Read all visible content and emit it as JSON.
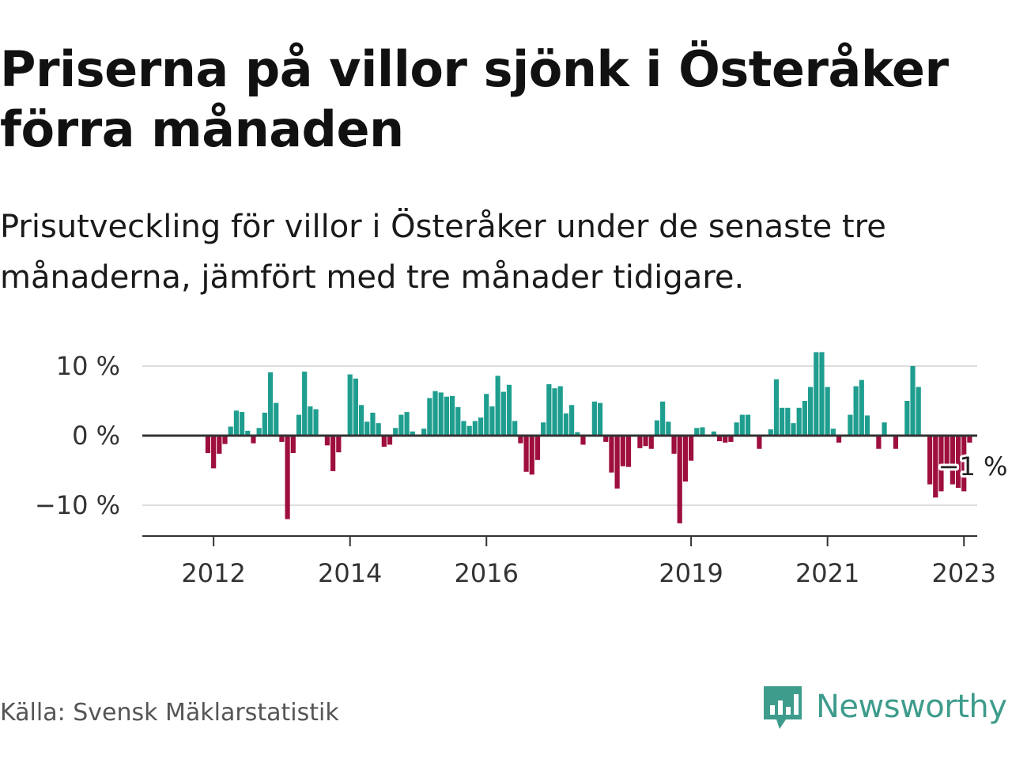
{
  "title": "Priserna på villor sjönk i Österåker förra månaden",
  "subtitle": "Prisutveckling för villor i Österåker under de senaste tre månaderna, jämfört med tre månader tidigare.",
  "source": "Källa: Svensk Mäklarstatistik",
  "brand": {
    "name": "Newsworthy",
    "logo_icon": "bar-chart-speech-bubble-icon",
    "color": "#3e9c8c"
  },
  "colors": {
    "positive": "#1f9e8f",
    "negative": "#9e0f3d",
    "gridline": "#dddddd",
    "zero_line": "#333333"
  },
  "chart_data": {
    "type": "bar",
    "title": "Priserna på villor sjönk i Österåker förra månaden",
    "subtitle": "Prisutveckling för villor i Österåker under de senaste tre månaderna, jämfört med tre månader tidigare.",
    "xlabel": "",
    "ylabel": "",
    "unit": "%",
    "x_range": [
      "2011-07",
      "2023-09"
    ],
    "ylim": [
      -14.5,
      13
    ],
    "grid": true,
    "legend": "none",
    "y_ticks": [
      {
        "value": 10,
        "label": "10 %"
      },
      {
        "value": 0,
        "label": "0 %"
      },
      {
        "value": -10,
        "label": "−10 %"
      }
    ],
    "x_ticks": [
      {
        "value": "2012-01",
        "label": "2012"
      },
      {
        "value": "2014-01",
        "label": "2014"
      },
      {
        "value": "2016-01",
        "label": "2016"
      },
      {
        "value": "2019-01",
        "label": "2019"
      },
      {
        "value": "2021-01",
        "label": "2021"
      },
      {
        "value": "2023-01",
        "label": "2023"
      }
    ],
    "end_label": {
      "date": "2023-02",
      "text": "−1 %"
    },
    "series": [
      {
        "points": [
          {
            "date": "2011-07",
            "value": 0
          },
          {
            "date": "2011-08",
            "value": 0
          },
          {
            "date": "2011-09",
            "value": 0
          },
          {
            "date": "2011-10",
            "value": 0
          },
          {
            "date": "2011-11",
            "value": 0
          },
          {
            "date": "2011-12",
            "value": -2.5
          },
          {
            "date": "2012-01",
            "value": -4.7
          },
          {
            "date": "2012-02",
            "value": -2.6
          },
          {
            "date": "2012-03",
            "value": -1.2
          },
          {
            "date": "2012-04",
            "value": 1.3
          },
          {
            "date": "2012-05",
            "value": 3.6
          },
          {
            "date": "2012-06",
            "value": 3.4
          },
          {
            "date": "2012-07",
            "value": 0.7
          },
          {
            "date": "2012-08",
            "value": -1.1
          },
          {
            "date": "2012-09",
            "value": 1.1
          },
          {
            "date": "2012-10",
            "value": 3.3
          },
          {
            "date": "2012-11",
            "value": 9.1
          },
          {
            "date": "2012-12",
            "value": 4.7
          },
          {
            "date": "2013-01",
            "value": -0.9
          },
          {
            "date": "2013-02",
            "value": -12.0
          },
          {
            "date": "2013-03",
            "value": -2.5
          },
          {
            "date": "2013-04",
            "value": 3.0
          },
          {
            "date": "2013-05",
            "value": 9.2
          },
          {
            "date": "2013-06",
            "value": 4.2
          },
          {
            "date": "2013-07",
            "value": 3.8
          },
          {
            "date": "2013-08",
            "value": 0
          },
          {
            "date": "2013-09",
            "value": -1.4
          },
          {
            "date": "2013-10",
            "value": -5.1
          },
          {
            "date": "2013-11",
            "value": -2.4
          },
          {
            "date": "2013-12",
            "value": 0
          },
          {
            "date": "2014-01",
            "value": 8.8
          },
          {
            "date": "2014-02",
            "value": 8.2
          },
          {
            "date": "2014-03",
            "value": 4.4
          },
          {
            "date": "2014-04",
            "value": 2.0
          },
          {
            "date": "2014-05",
            "value": 3.3
          },
          {
            "date": "2014-06",
            "value": 1.8
          },
          {
            "date": "2014-07",
            "value": -1.6
          },
          {
            "date": "2014-08",
            "value": -1.3
          },
          {
            "date": "2014-09",
            "value": 1.1
          },
          {
            "date": "2014-10",
            "value": 3.0
          },
          {
            "date": "2014-11",
            "value": 3.4
          },
          {
            "date": "2014-12",
            "value": 0.6
          },
          {
            "date": "2015-01",
            "value": 0
          },
          {
            "date": "2015-02",
            "value": 1.0
          },
          {
            "date": "2015-03",
            "value": 5.4
          },
          {
            "date": "2015-04",
            "value": 6.4
          },
          {
            "date": "2015-05",
            "value": 6.2
          },
          {
            "date": "2015-06",
            "value": 5.6
          },
          {
            "date": "2015-07",
            "value": 5.7
          },
          {
            "date": "2015-08",
            "value": 4.1
          },
          {
            "date": "2015-09",
            "value": 2.1
          },
          {
            "date": "2015-10",
            "value": 1.4
          },
          {
            "date": "2015-11",
            "value": 2.1
          },
          {
            "date": "2015-12",
            "value": 2.6
          },
          {
            "date": "2016-01",
            "value": 6.0
          },
          {
            "date": "2016-02",
            "value": 4.2
          },
          {
            "date": "2016-03",
            "value": 8.6
          },
          {
            "date": "2016-04",
            "value": 6.3
          },
          {
            "date": "2016-05",
            "value": 7.3
          },
          {
            "date": "2016-06",
            "value": 2.1
          },
          {
            "date": "2016-07",
            "value": -1.1
          },
          {
            "date": "2016-08",
            "value": -5.2
          },
          {
            "date": "2016-09",
            "value": -5.6
          },
          {
            "date": "2016-10",
            "value": -3.5
          },
          {
            "date": "2016-11",
            "value": 1.9
          },
          {
            "date": "2016-12",
            "value": 7.4
          },
          {
            "date": "2017-01",
            "value": 6.8
          },
          {
            "date": "2017-02",
            "value": 7.1
          },
          {
            "date": "2017-03",
            "value": 3.2
          },
          {
            "date": "2017-04",
            "value": 4.4
          },
          {
            "date": "2017-05",
            "value": 0.5
          },
          {
            "date": "2017-06",
            "value": -1.3
          },
          {
            "date": "2017-07",
            "value": 0
          },
          {
            "date": "2017-08",
            "value": 4.9
          },
          {
            "date": "2017-09",
            "value": 4.7
          },
          {
            "date": "2017-10",
            "value": -0.9
          },
          {
            "date": "2017-11",
            "value": -5.3
          },
          {
            "date": "2017-12",
            "value": -7.6
          },
          {
            "date": "2018-01",
            "value": -4.4
          },
          {
            "date": "2018-02",
            "value": -4.5
          },
          {
            "date": "2018-03",
            "value": 0
          },
          {
            "date": "2018-04",
            "value": -1.8
          },
          {
            "date": "2018-05",
            "value": -1.5
          },
          {
            "date": "2018-06",
            "value": -1.9
          },
          {
            "date": "2018-07",
            "value": 2.2
          },
          {
            "date": "2018-08",
            "value": 4.9
          },
          {
            "date": "2018-09",
            "value": 2.0
          },
          {
            "date": "2018-10",
            "value": -2.6
          },
          {
            "date": "2018-11",
            "value": -12.6
          },
          {
            "date": "2018-12",
            "value": -6.6
          },
          {
            "date": "2019-01",
            "value": -3.6
          },
          {
            "date": "2019-02",
            "value": 1.1
          },
          {
            "date": "2019-03",
            "value": 1.2
          },
          {
            "date": "2019-04",
            "value": 0
          },
          {
            "date": "2019-05",
            "value": 0.6
          },
          {
            "date": "2019-06",
            "value": -0.8
          },
          {
            "date": "2019-07",
            "value": -1.0
          },
          {
            "date": "2019-08",
            "value": -0.9
          },
          {
            "date": "2019-09",
            "value": 1.9
          },
          {
            "date": "2019-10",
            "value": 3.0
          },
          {
            "date": "2019-11",
            "value": 3.0
          },
          {
            "date": "2019-12",
            "value": 0
          },
          {
            "date": "2020-01",
            "value": -1.9
          },
          {
            "date": "2020-02",
            "value": 0
          },
          {
            "date": "2020-03",
            "value": 0.9
          },
          {
            "date": "2020-04",
            "value": 8.1
          },
          {
            "date": "2020-05",
            "value": 4.0
          },
          {
            "date": "2020-06",
            "value": 4.0
          },
          {
            "date": "2020-07",
            "value": 1.8
          },
          {
            "date": "2020-08",
            "value": 4.0
          },
          {
            "date": "2020-09",
            "value": 5.0
          },
          {
            "date": "2020-10",
            "value": 7.0
          },
          {
            "date": "2020-11",
            "value": 12.0
          },
          {
            "date": "2020-12",
            "value": 12.0
          },
          {
            "date": "2021-01",
            "value": 7.0
          },
          {
            "date": "2021-02",
            "value": 1.0
          },
          {
            "date": "2021-03",
            "value": -1.0
          },
          {
            "date": "2021-04",
            "value": 0
          },
          {
            "date": "2021-05",
            "value": 3.0
          },
          {
            "date": "2021-06",
            "value": 7.1
          },
          {
            "date": "2021-07",
            "value": 8.0
          },
          {
            "date": "2021-08",
            "value": 2.9
          },
          {
            "date": "2021-09",
            "value": 0
          },
          {
            "date": "2021-10",
            "value": -1.9
          },
          {
            "date": "2021-11",
            "value": 1.9
          },
          {
            "date": "2021-12",
            "value": 0
          },
          {
            "date": "2022-01",
            "value": -1.9
          },
          {
            "date": "2022-02",
            "value": 0
          },
          {
            "date": "2022-03",
            "value": 5.0
          },
          {
            "date": "2022-04",
            "value": 10.0
          },
          {
            "date": "2022-05",
            "value": 7.0
          },
          {
            "date": "2022-06",
            "value": 0
          },
          {
            "date": "2022-07",
            "value": -7.0
          },
          {
            "date": "2022-08",
            "value": -8.9
          },
          {
            "date": "2022-09",
            "value": -8.0
          },
          {
            "date": "2022-10",
            "value": -5.0
          },
          {
            "date": "2022-11",
            "value": -7.0
          },
          {
            "date": "2022-12",
            "value": -7.5
          },
          {
            "date": "2023-01",
            "value": -8.0
          },
          {
            "date": "2023-02",
            "value": -1.0
          }
        ]
      }
    ]
  }
}
